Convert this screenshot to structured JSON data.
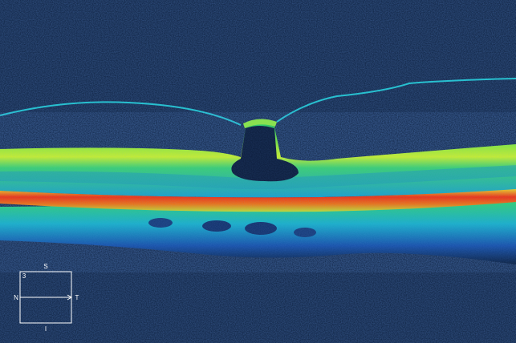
{
  "scan": {
    "colormap": [
      "#0a1d3a",
      "#1a55b0",
      "#19c8d0",
      "#22e060",
      "#d8f020",
      "#f59a10",
      "#f02a10"
    ]
  },
  "orientation": {
    "superior": "S",
    "inferior": "I",
    "nasal": "N",
    "temporal": "T",
    "line_number": "3"
  }
}
